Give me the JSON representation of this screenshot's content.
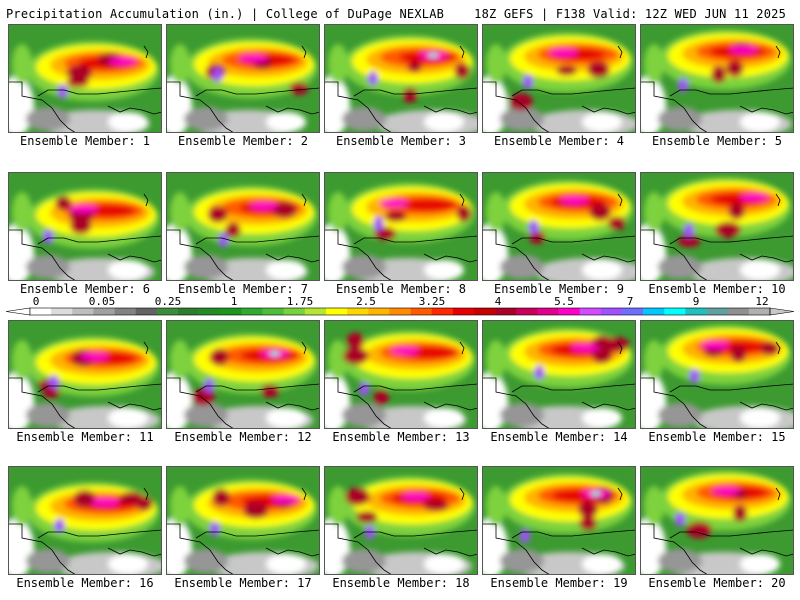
{
  "header": {
    "title": "Precipitation Accumulation (in.) | College of DuPage NEXLAB",
    "run_info": "18Z GEFS | F138 Valid: 12Z WED JUN 11 2025"
  },
  "colorbar": {
    "labels": [
      "0",
      "0.05",
      "0.25",
      "1",
      "1.75",
      "2.5",
      "3.25",
      "4",
      "5.5",
      "7",
      "9",
      "12"
    ],
    "colors": [
      "#ffffff",
      "#dcdcdc",
      "#bebebe",
      "#a0a0a0",
      "#828282",
      "#646464",
      "#3c8c3c",
      "#2e7d2e",
      "#238b23",
      "#1e961e",
      "#30ab30",
      "#4cbe38",
      "#78d23c",
      "#b4e632",
      "#ffff00",
      "#ffd700",
      "#ffb400",
      "#ff8c00",
      "#ff5a00",
      "#ff2800",
      "#e60000",
      "#c80000",
      "#aa0028",
      "#c8005a",
      "#e0008c",
      "#ff00c8",
      "#d24bff",
      "#a050ff",
      "#6e6eff",
      "#00c8ff",
      "#00ffff",
      "#20c0c0",
      "#60a0a0",
      "#909090",
      "#b0b0b0"
    ]
  },
  "members": [
    {
      "caption": "Ensemble Member: 1"
    },
    {
      "caption": "Ensemble Member: 2"
    },
    {
      "caption": "Ensemble Member: 3"
    },
    {
      "caption": "Ensemble Member: 4"
    },
    {
      "caption": "Ensemble Member: 5"
    },
    {
      "caption": "Ensemble Member: 6"
    },
    {
      "caption": "Ensemble Member: 7"
    },
    {
      "caption": "Ensemble Member: 8"
    },
    {
      "caption": "Ensemble Member: 9"
    },
    {
      "caption": "Ensemble Member: 10"
    },
    {
      "caption": "Ensemble Member: 11"
    },
    {
      "caption": "Ensemble Member: 12"
    },
    {
      "caption": "Ensemble Member: 13"
    },
    {
      "caption": "Ensemble Member: 14"
    },
    {
      "caption": "Ensemble Member: 15"
    },
    {
      "caption": "Ensemble Member: 16"
    },
    {
      "caption": "Ensemble Member: 17"
    },
    {
      "caption": "Ensemble Member: 18"
    },
    {
      "caption": "Ensemble Member: 19"
    },
    {
      "caption": "Ensemble Member: 20"
    }
  ],
  "map_colors": {
    "none": "#ffffff",
    "light_gray": "#c8c8c8",
    "gray": "#969696",
    "dark_green": "#2e7d2e",
    "green": "#3c9a30",
    "light_green": "#7ed23c",
    "yellow": "#ffff00",
    "orange": "#ffb400",
    "red_orange": "#ff5a00",
    "red": "#e60000",
    "dark_red": "#aa0028",
    "magenta": "#ff00c8",
    "purple": "#a050ff",
    "cyan": "#00ffff",
    "border_line": "#000000"
  }
}
